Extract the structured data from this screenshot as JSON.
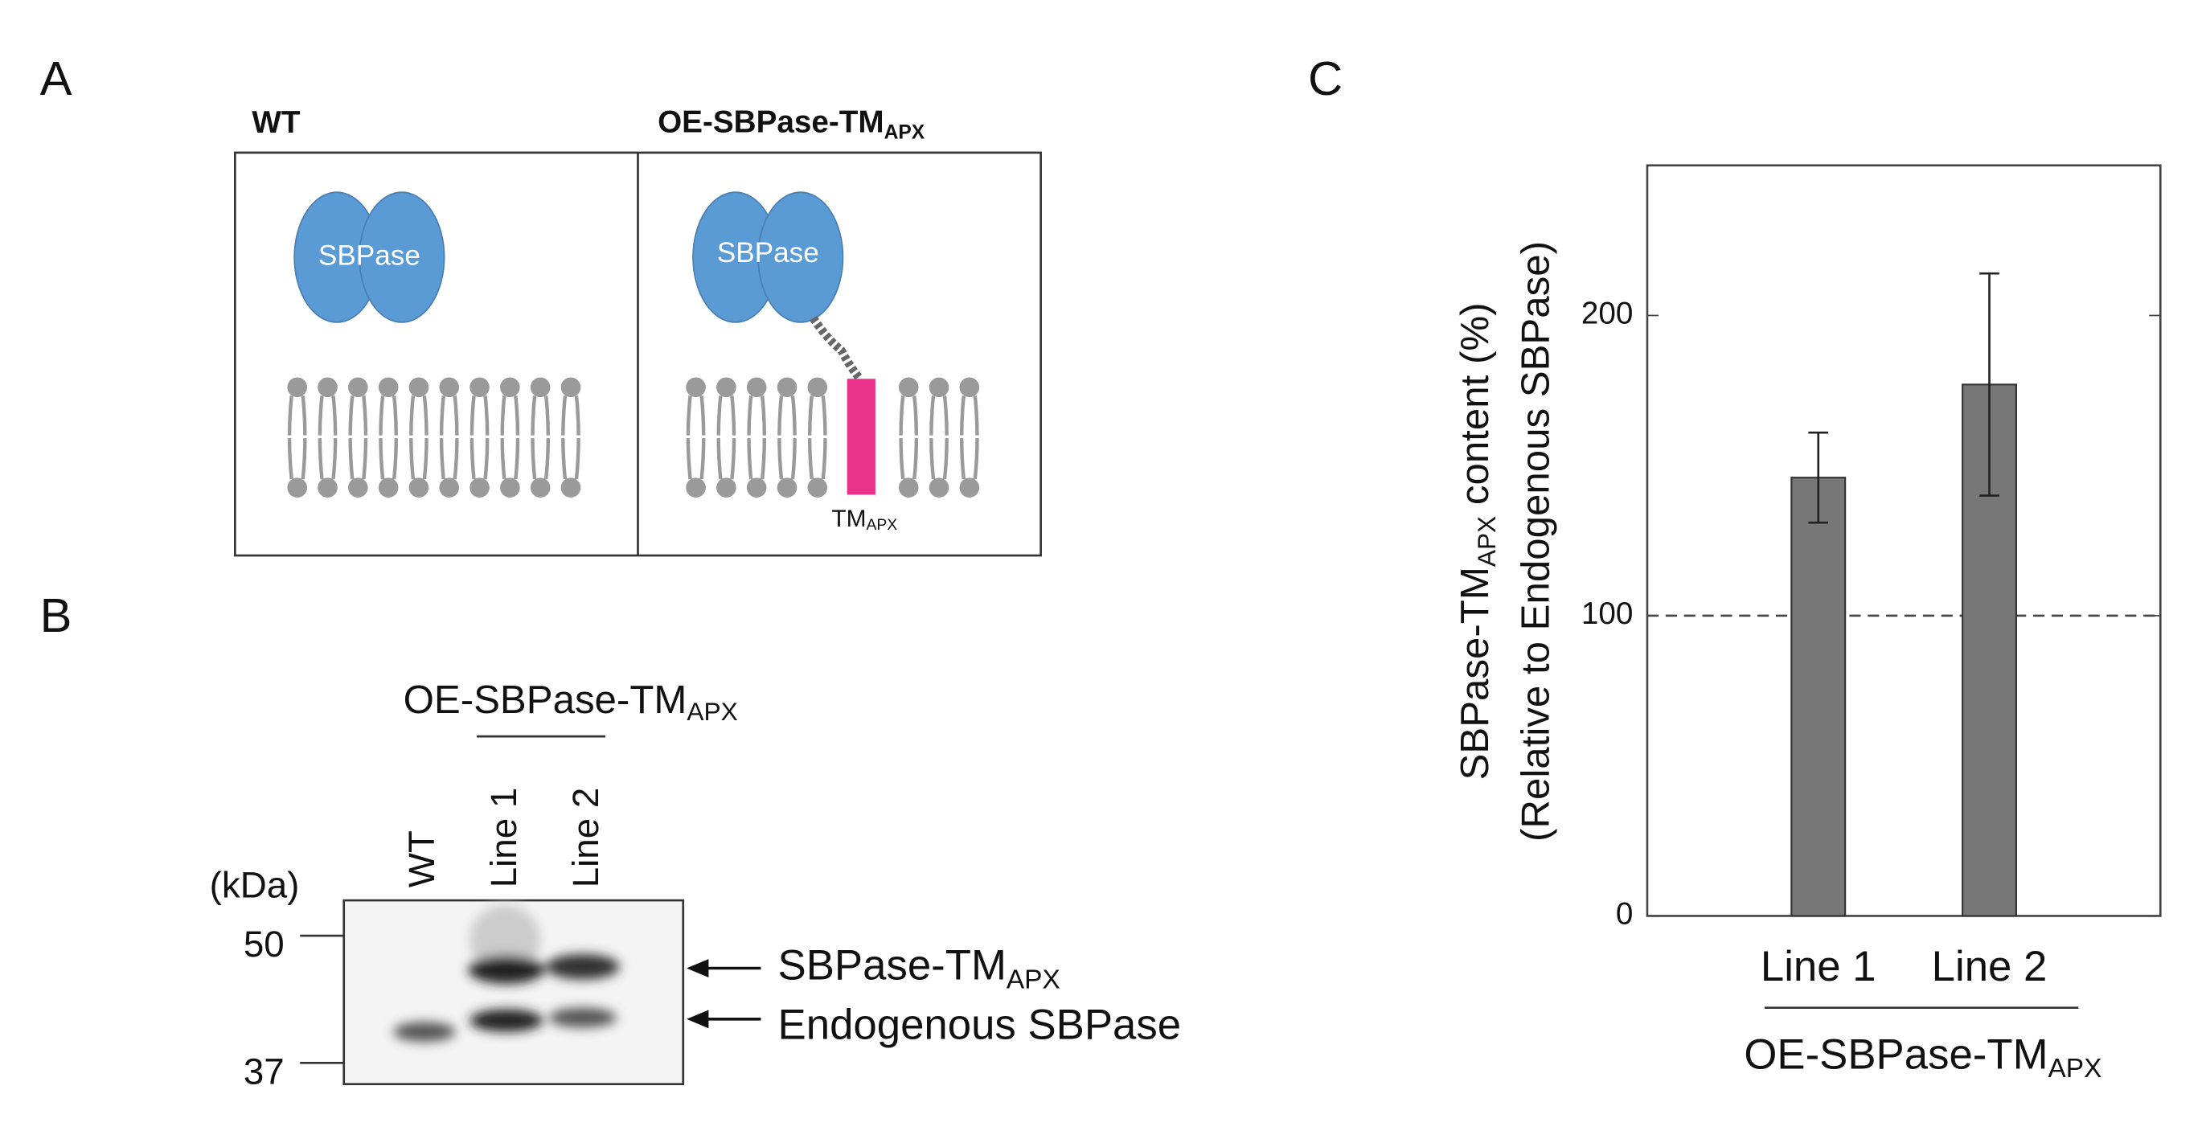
{
  "panels": {
    "a": "A",
    "b": "B",
    "c": "C"
  },
  "diagram": {
    "wt_title": "WT",
    "oe_title": {
      "main": "OE-SBPase-TM",
      "sub": "APX"
    },
    "protein_wt": "SBPase",
    "protein_oe": "SBPase",
    "anchor": {
      "main": "TM",
      "sub": "APX"
    }
  },
  "blot": {
    "group": {
      "main": "OE-SBPase-TM",
      "sub": "APX"
    },
    "lanes": [
      "WT",
      "Line 1",
      "Line 2"
    ],
    "unit": "(kDa)",
    "markers": [
      "50",
      "37"
    ],
    "bands": [
      {
        "main": "SBPase-TM",
        "sub": "APX"
      },
      {
        "main": "Endogenous SBPase"
      }
    ]
  },
  "chart_data": {
    "type": "bar",
    "y_label": {
      "main": "SBPase-TM",
      "sub": "APX",
      "rest": " content (%)",
      "line2": "(Relative to Endogenous SBPase)"
    },
    "categories": [
      "Line 1",
      "Line 2"
    ],
    "group_label": {
      "main": "OE-SBPase-TM",
      "sub": "APX"
    },
    "values": [
      146,
      177
    ],
    "errors": [
      15,
      37
    ],
    "color": "#777777",
    "ylim": [
      0,
      250
    ],
    "yticks": [
      0,
      100,
      200
    ],
    "reference_line": 100
  }
}
